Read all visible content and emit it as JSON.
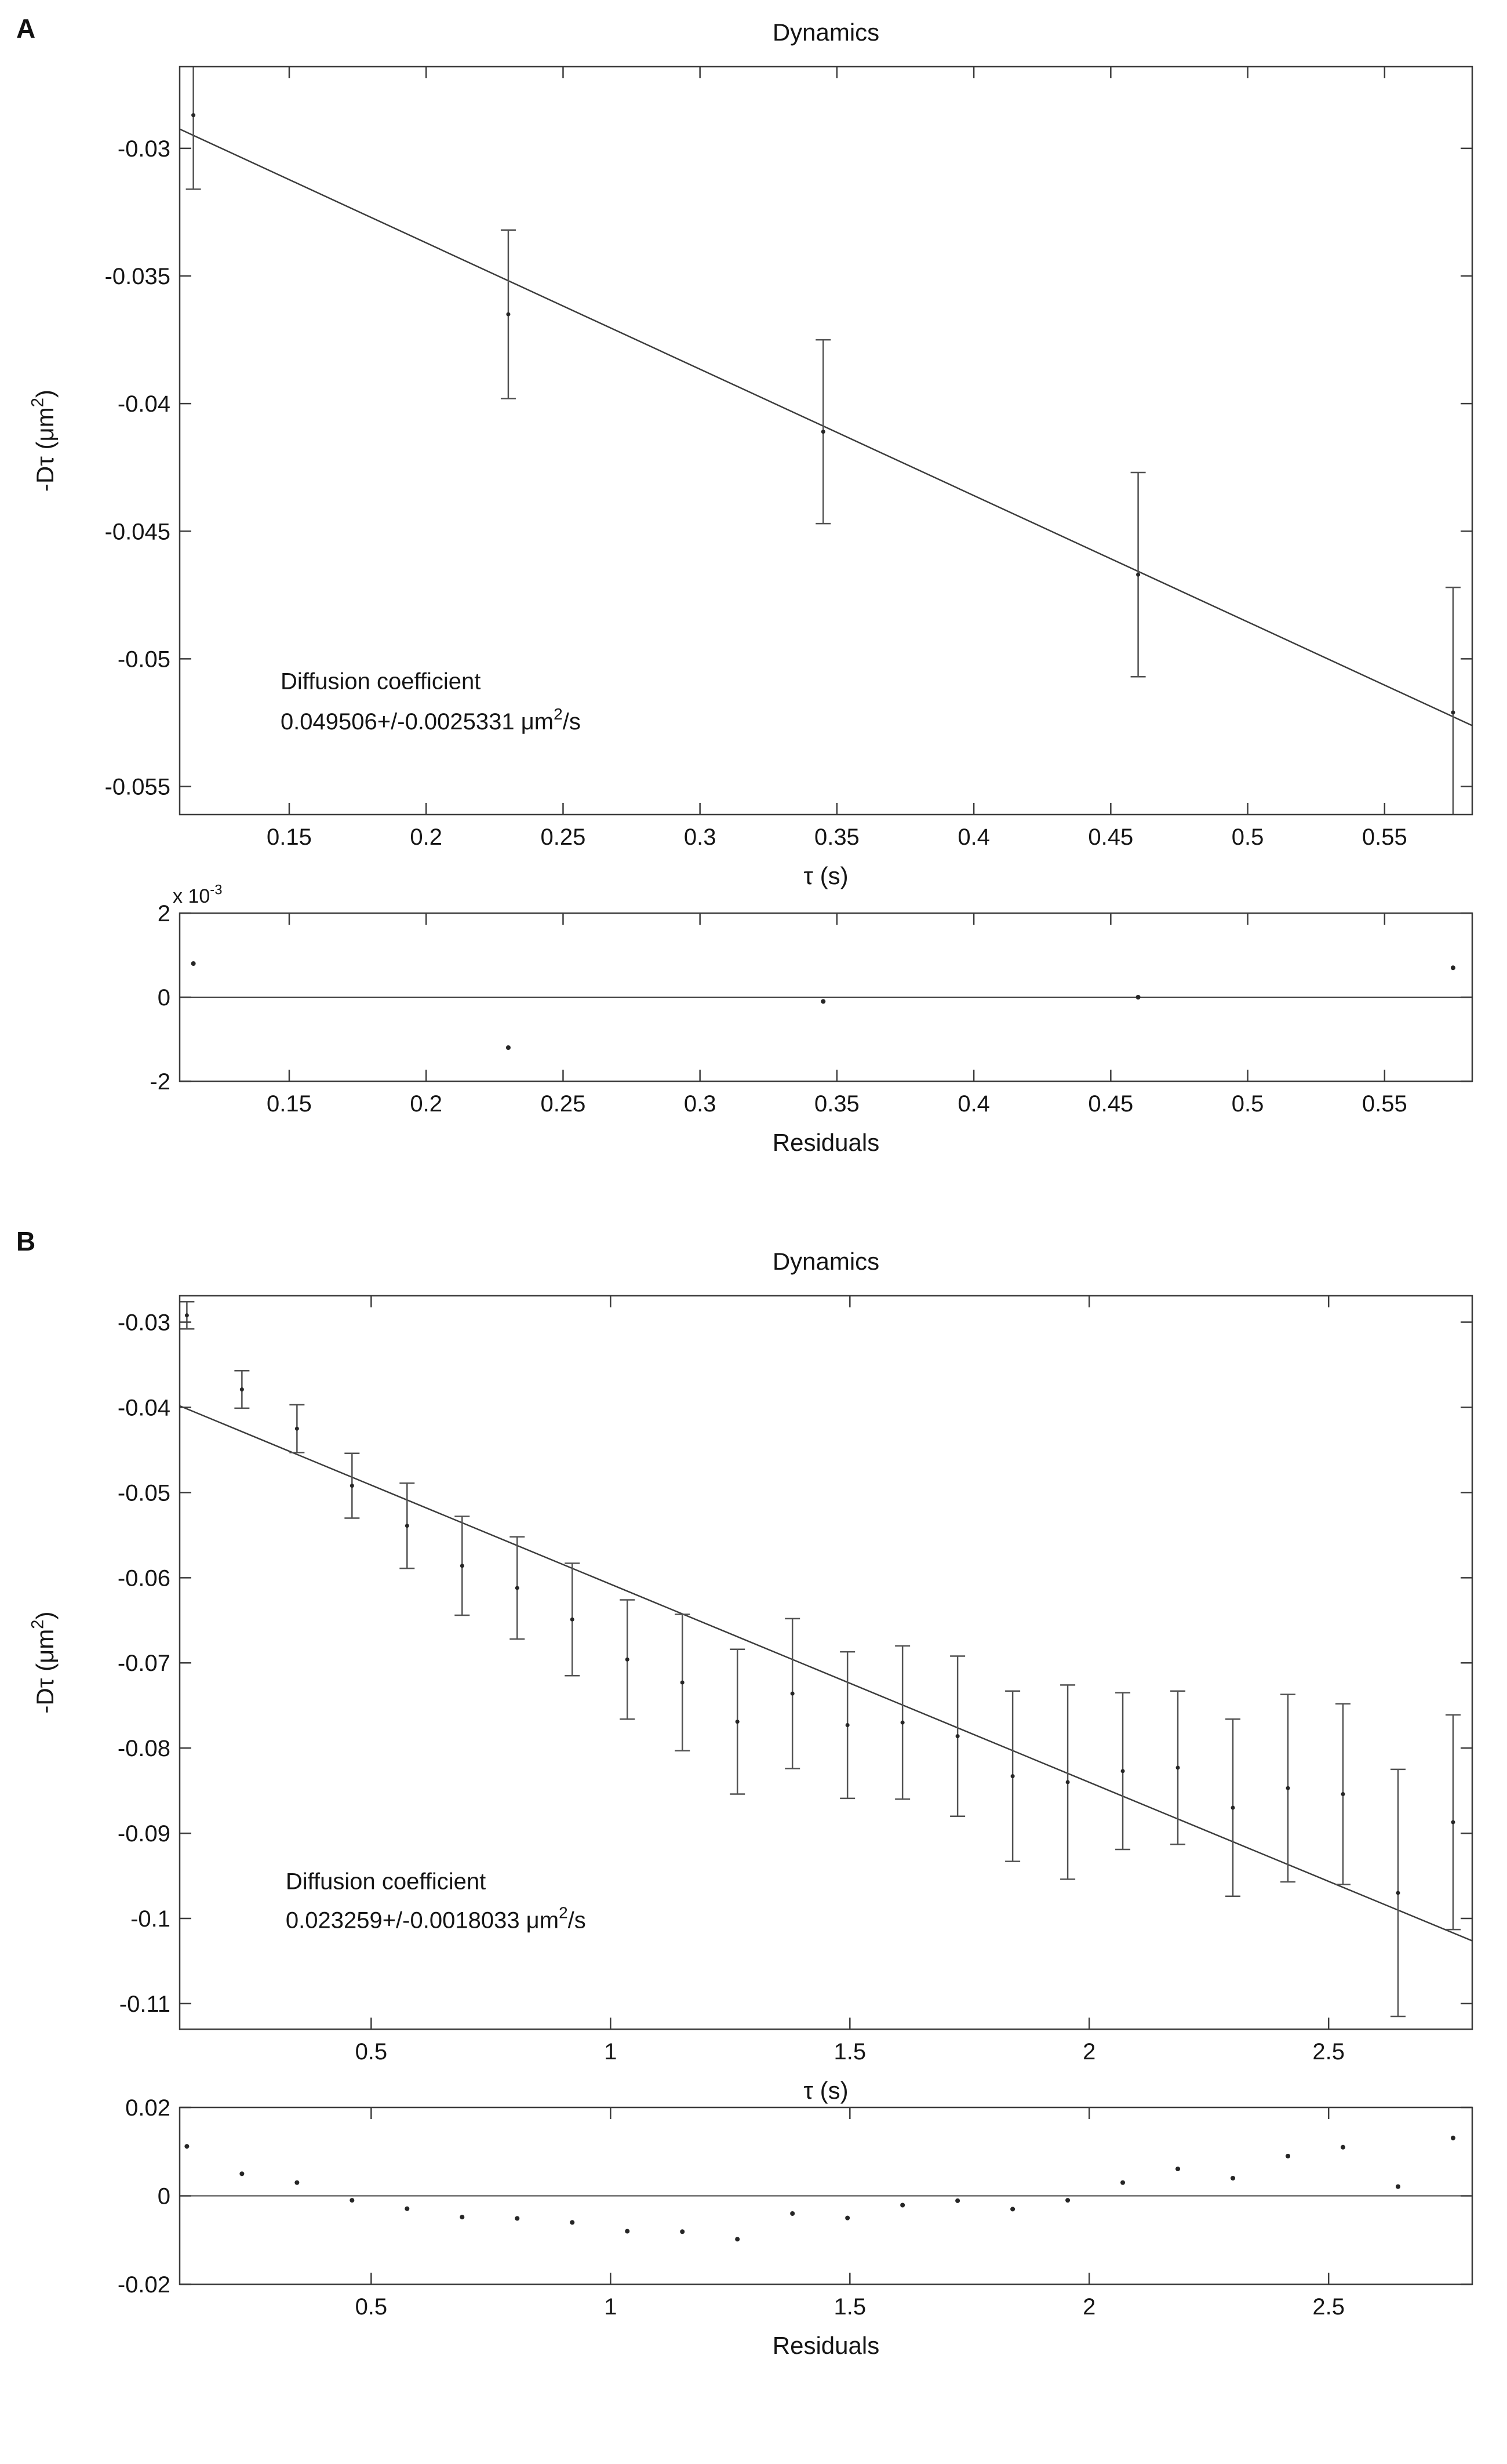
{
  "panels": {
    "a": {
      "label": "A"
    },
    "b": {
      "label": "B"
    }
  },
  "style": {
    "background": "#ffffff",
    "axis_color": "#3c3c3c",
    "text_color": "#151515",
    "errorbar_color": "#525252",
    "fit_color": "#3c3c3c",
    "marker_color": "#262626"
  },
  "chart_data": [
    {
      "id": "panel_a_main",
      "type": "scatter",
      "panel": "A",
      "title": "Dynamics",
      "xlabel": "τ (s)",
      "ylabel": "-Dτ (μm²)",
      "xlim": [
        0.11,
        0.582
      ],
      "ylim": [
        -0.0561,
        -0.0268
      ],
      "xticks": [
        0.15,
        0.2,
        0.25,
        0.3,
        0.35,
        0.4,
        0.45,
        0.5,
        0.55
      ],
      "yticks": [
        -0.055,
        -0.05,
        -0.045,
        -0.04,
        -0.035,
        -0.03
      ],
      "grid": false,
      "legend": null,
      "series": [
        {
          "name": "msd-errorbar-series",
          "x": [
            0.115,
            0.23,
            0.345,
            0.46,
            0.575
          ],
          "y": [
            -0.0287,
            -0.0365,
            -0.0411,
            -0.0467,
            -0.0521
          ],
          "yerr": [
            0.0029,
            0.0033,
            0.0036,
            0.004,
            0.0049
          ]
        }
      ],
      "fit_line": {
        "slope": -0.049506,
        "intercept": -0.0238
      },
      "annotation": {
        "lines": [
          "Diffusion coefficient",
          "0.049506+/-0.0025331 μm²/s"
        ],
        "fx": 0.078,
        "fy": [
          0.832,
          0.886
        ]
      }
    },
    {
      "id": "panel_a_residuals",
      "type": "scatter",
      "panel": "A",
      "title": null,
      "xlabel": "Residuals",
      "exponent_label": "x 10⁻³",
      "xlim": [
        0.11,
        0.582
      ],
      "ylim": [
        -0.002,
        0.002
      ],
      "xticks": [
        0.15,
        0.2,
        0.25,
        0.3,
        0.35,
        0.4,
        0.45,
        0.5,
        0.55
      ],
      "yticks": [
        -0.002,
        0,
        0.002
      ],
      "ytick_labels": [
        "-2",
        "0",
        "2"
      ],
      "zero_line": true,
      "grid": false,
      "legend": null,
      "series": [
        {
          "name": "residuals-series",
          "x": [
            0.115,
            0.23,
            0.345,
            0.46,
            0.575
          ],
          "y": [
            0.0008,
            -0.0012,
            -0.0001,
            0.0,
            0.0007
          ]
        }
      ]
    },
    {
      "id": "panel_b_main",
      "type": "scatter",
      "panel": "B",
      "title": "Dynamics",
      "xlabel": "τ (s)",
      "ylabel": "-Dτ (μm²)",
      "xlim": [
        0.1,
        2.8
      ],
      "ylim": [
        -0.113,
        -0.0269
      ],
      "xticks": [
        0.5,
        1,
        1.5,
        2,
        2.5
      ],
      "yticks": [
        -0.11,
        -0.1,
        -0.09,
        -0.08,
        -0.07,
        -0.06,
        -0.05,
        -0.04,
        -0.03
      ],
      "grid": false,
      "legend": null,
      "series": [
        {
          "name": "msd-errorbar-series",
          "x": [
            0.115,
            0.23,
            0.345,
            0.46,
            0.575,
            0.69,
            0.805,
            0.92,
            1.035,
            1.15,
            1.265,
            1.38,
            1.495,
            1.61,
            1.725,
            1.84,
            1.955,
            2.07,
            2.185,
            2.3,
            2.415,
            2.53,
            2.645,
            2.76
          ],
          "y": [
            -0.0292,
            -0.0379,
            -0.0425,
            -0.0492,
            -0.0539,
            -0.0586,
            -0.0612,
            -0.0649,
            -0.0696,
            -0.0723,
            -0.0769,
            -0.0736,
            -0.0773,
            -0.077,
            -0.0786,
            -0.0833,
            -0.084,
            -0.0827,
            -0.0823,
            -0.087,
            -0.0847,
            -0.0854,
            -0.097,
            -0.0887
          ],
          "yerr": [
            0.0016,
            0.0022,
            0.0028,
            0.0038,
            0.005,
            0.0058,
            0.006,
            0.0066,
            0.007,
            0.008,
            0.0085,
            0.0088,
            0.0086,
            0.009,
            0.0094,
            0.01,
            0.0114,
            0.0092,
            0.009,
            0.0104,
            0.011,
            0.0106,
            0.0145,
            0.0126
          ]
        }
      ],
      "fit_line": {
        "slope": -0.023259,
        "intercept": -0.0375
      },
      "annotation": {
        "lines": [
          "Diffusion coefficient",
          "0.023259+/-0.0018033 μm²/s"
        ],
        "fx": 0.082,
        "fy": [
          0.809,
          0.862
        ]
      }
    },
    {
      "id": "panel_b_residuals",
      "type": "scatter",
      "panel": "B",
      "title": null,
      "xlabel": "Residuals",
      "xlim": [
        0.1,
        2.8
      ],
      "ylim": [
        -0.02,
        0.02
      ],
      "xticks": [
        0.5,
        1,
        1.5,
        2,
        2.5
      ],
      "yticks": [
        -0.02,
        0,
        0.02
      ],
      "zero_line": true,
      "grid": false,
      "legend": null,
      "series": [
        {
          "name": "residuals-series",
          "x": [
            0.115,
            0.23,
            0.345,
            0.46,
            0.575,
            0.69,
            0.805,
            0.92,
            1.035,
            1.15,
            1.265,
            1.38,
            1.495,
            1.61,
            1.725,
            1.84,
            1.955,
            2.07,
            2.185,
            2.3,
            2.415,
            2.53,
            2.645,
            2.76
          ],
          "y": [
            0.0112,
            0.005,
            0.003,
            -0.001,
            -0.0029,
            -0.0048,
            -0.0051,
            -0.006,
            -0.008,
            -0.0081,
            -0.0098,
            -0.004,
            -0.005,
            -0.0021,
            -0.0011,
            -0.003,
            -0.001,
            0.003,
            0.0061,
            0.004,
            0.009,
            0.011,
            0.0021,
            0.0131
          ]
        }
      ]
    }
  ]
}
